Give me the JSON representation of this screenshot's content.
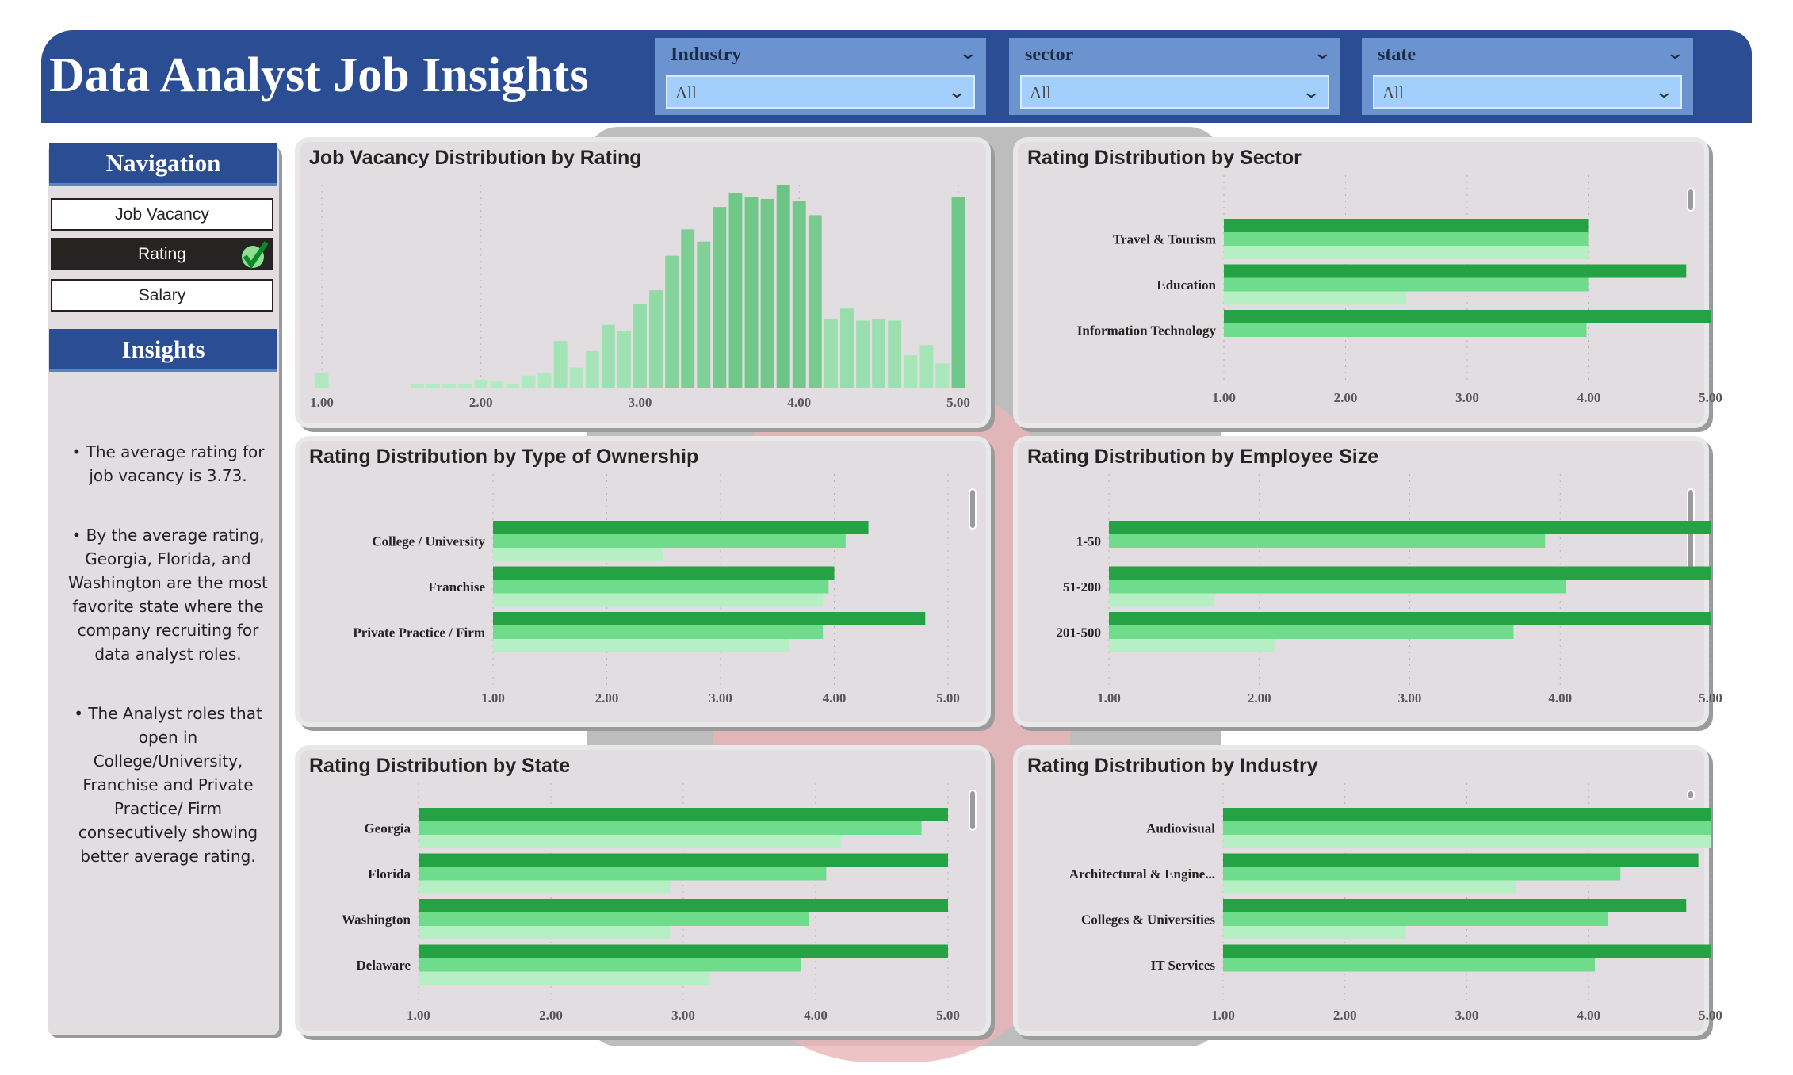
{
  "header": {
    "title": "Data Analyst Job Insights"
  },
  "slicers": [
    {
      "label": "Industry",
      "value": "All"
    },
    {
      "label": "sector",
      "value": "All"
    },
    {
      "label": "state",
      "value": "All"
    }
  ],
  "navigation": {
    "title": "Navigation",
    "items": [
      {
        "label": "Job Vacancy"
      },
      {
        "label": "Rating",
        "active": true
      },
      {
        "label": "Salary"
      }
    ]
  },
  "insights": {
    "title": "Insights",
    "points": [
      "• The average rating for job vacancy is 3.73.",
      "• By the average rating, Georgia, Florida, and Washington are the most favorite state where the company recruiting for data analyst roles.",
      "• The Analyst roles that open in College/University, Franchise and Private Practice/ Firm consecutively showing better average rating."
    ]
  },
  "colors": {
    "header": "#2a4d94",
    "series": [
      "#25a244",
      "#6fdc8c",
      "#b7efc5"
    ],
    "hist_low": "#b3ecc2",
    "hist_high": "#6cc586"
  },
  "chart_data": [
    {
      "id": "hist",
      "type": "bar",
      "title": "Job Vacancy Distribution by Rating",
      "xlim": [
        1,
        5
      ],
      "xticks": [
        "1.00",
        "2.00",
        "3.00",
        "4.00",
        "5.00"
      ],
      "grid": true,
      "x": [
        1.0,
        1.6,
        1.7,
        1.8,
        1.9,
        2.0,
        2.1,
        2.2,
        2.3,
        2.4,
        2.5,
        2.6,
        2.7,
        2.8,
        2.9,
        3.0,
        3.1,
        3.2,
        3.3,
        3.4,
        3.5,
        3.6,
        3.7,
        3.8,
        3.9,
        4.0,
        4.1,
        4.2,
        4.3,
        4.4,
        4.5,
        4.6,
        4.7,
        4.8,
        4.9,
        5.0
      ],
      "values": [
        7,
        2,
        2,
        2,
        2,
        4,
        3,
        2,
        6,
        7,
        23,
        10,
        18,
        31,
        28,
        41,
        48,
        65,
        78,
        72,
        89,
        96,
        94,
        93,
        100,
        92,
        85,
        34,
        39,
        33,
        34,
        33,
        16,
        21,
        12,
        94
      ]
    },
    {
      "id": "sector",
      "type": "bar",
      "orientation": "horizontal",
      "title": "Rating Distribution by Sector",
      "xlim": [
        1,
        5
      ],
      "xticks": [
        "1.00",
        "2.00",
        "3.00",
        "4.00",
        "5.00"
      ],
      "categories": [
        "Travel & Tourism",
        "Education",
        "Information Technology"
      ],
      "series": [
        {
          "values": [
            4.0,
            4.8,
            5.0
          ]
        },
        {
          "values": [
            4.0,
            4.0,
            3.98
          ]
        },
        {
          "values": [
            4.0,
            2.5,
            null
          ]
        }
      ]
    },
    {
      "id": "ownership",
      "type": "bar",
      "orientation": "horizontal",
      "title": "Rating Distribution by Type of Ownership",
      "xlim": [
        1,
        5
      ],
      "xticks": [
        "1.00",
        "2.00",
        "3.00",
        "4.00",
        "5.00"
      ],
      "categories": [
        "College / University",
        "Franchise",
        "Private Practice / Firm"
      ],
      "series": [
        {
          "values": [
            4.3,
            4.0,
            4.8
          ]
        },
        {
          "values": [
            4.1,
            3.95,
            3.9
          ]
        },
        {
          "values": [
            2.5,
            3.9,
            3.6
          ]
        }
      ]
    },
    {
      "id": "size",
      "type": "bar",
      "orientation": "horizontal",
      "title": "Rating Distribution by Employee Size",
      "xlim": [
        1,
        5
      ],
      "xticks": [
        "1.00",
        "2.00",
        "3.00",
        "4.00",
        "5.00"
      ],
      "categories": [
        "1-50",
        "51-200",
        "201-500"
      ],
      "series": [
        {
          "values": [
            5.0,
            5.0,
            5.0
          ]
        },
        {
          "values": [
            3.9,
            4.04,
            3.69
          ]
        },
        {
          "values": [
            null,
            1.7,
            2.1
          ]
        }
      ]
    },
    {
      "id": "state",
      "type": "bar",
      "orientation": "horizontal",
      "title": "Rating Distribution by State",
      "xlim": [
        1,
        5
      ],
      "xticks": [
        "1.00",
        "2.00",
        "3.00",
        "4.00",
        "5.00"
      ],
      "categories": [
        "Georgia",
        "Florida",
        "Washington",
        "Delaware"
      ],
      "series": [
        {
          "values": [
            5.0,
            5.0,
            5.0,
            5.0
          ]
        },
        {
          "values": [
            4.8,
            4.08,
            3.95,
            3.89
          ]
        },
        {
          "values": [
            4.19,
            2.9,
            2.9,
            3.2
          ]
        }
      ]
    },
    {
      "id": "industry",
      "type": "bar",
      "orientation": "horizontal",
      "title": "Rating Distribution by Industry",
      "xlim": [
        1,
        5
      ],
      "xticks": [
        "1.00",
        "2.00",
        "3.00",
        "4.00",
        "5.00"
      ],
      "categories": [
        "Audiovisual",
        "Architectural & Engine...",
        "Colleges & Universities",
        "IT Services"
      ],
      "series": [
        {
          "values": [
            5.0,
            4.9,
            4.8,
            5.0
          ]
        },
        {
          "values": [
            5.0,
            4.26,
            4.16,
            4.05
          ]
        },
        {
          "values": [
            5.0,
            3.4,
            2.5,
            null
          ]
        }
      ]
    }
  ]
}
